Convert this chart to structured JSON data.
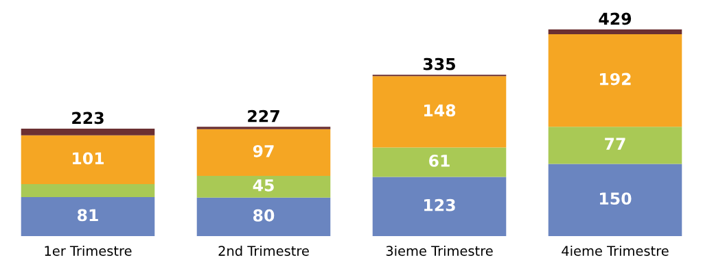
{
  "chart_data": {
    "type": "bar",
    "stacked": true,
    "categories": [
      "1er Trimestre",
      "2nd Trimestre",
      "3ieme Trimestre",
      "4ieme Trimestre"
    ],
    "series": [
      {
        "color": "#6a85c0",
        "values": [
          81,
          80,
          123,
          150
        ],
        "value_labels": [
          "81",
          "80",
          "123",
          "150"
        ]
      },
      {
        "color": "#a9c955",
        "values": [
          27,
          45,
          61,
          77
        ],
        "value_labels": [
          null,
          "45",
          "61",
          "77"
        ]
      },
      {
        "color": "#f5a623",
        "values": [
          101,
          97,
          148,
          192
        ],
        "value_labels": [
          "101",
          "97",
          "148",
          "192"
        ]
      },
      {
        "color": "#6b3032",
        "values": [
          14,
          5,
          3,
          10
        ],
        "value_labels": [
          null,
          null,
          null,
          null
        ]
      }
    ],
    "totals": [
      "223",
      "227",
      "335",
      "429"
    ],
    "tick_labels": "x",
    "grid": false,
    "legend": false
  }
}
